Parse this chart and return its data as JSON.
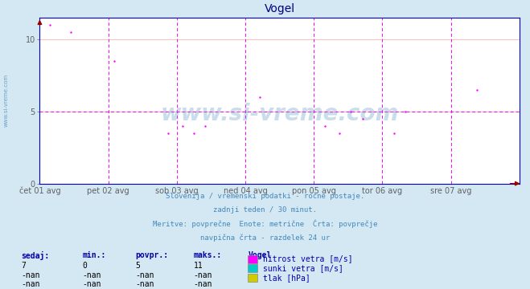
{
  "title": "Vogel",
  "bg_color": "#d4e8f4",
  "plot_bg_color": "#ffffff",
  "title_color": "#000080",
  "title_fontsize": 10,
  "ylim": [
    0,
    11.5
  ],
  "yticks": [
    0,
    5,
    10
  ],
  "tick_label_color": "#606060",
  "x_labels": [
    "čet 01 avg",
    "pet 02 avg",
    "sob 03 avg",
    "ned 04 avg",
    "pon 05 avg",
    "tor 06 avg",
    "sre 07 avg"
  ],
  "x_positions": [
    0,
    48,
    96,
    144,
    192,
    240,
    288
  ],
  "total_points": 336,
  "vline_color": "#ff00ff",
  "hgrid_color": "#ffbbbb",
  "avg_hline_y": 5,
  "avg_hline_color": "#ff00ff",
  "spine_color": "#0000cc",
  "watermark_color": "#5090c0",
  "watermark_text": "www.si-vreme.com",
  "hitrost_color": "#ff00ff",
  "sunki_color": "#00cccc",
  "tlak_color": "#cccc00",
  "hitrost_scatter_x": [
    7,
    22,
    52,
    154,
    306
  ],
  "hitrost_scatter_y": [
    11.0,
    10.5,
    8.5,
    6.0,
    6.5
  ],
  "hitrost_scatter2_x": [
    90,
    100,
    108,
    116,
    200,
    210,
    218,
    226,
    248,
    256
  ],
  "hitrost_scatter2_y": [
    3.5,
    4.0,
    3.5,
    4.0,
    4.0,
    3.5,
    5.0,
    4.5,
    3.5,
    5.0
  ],
  "info_lines": [
    "Slovenija / vremenski podatki - ročne postaje.",
    "zadnji teden / 30 minut.",
    "Meritve: povprečne  Enote: metrične  Črta: povprečje",
    "navpična črta - razdelek 24 ur"
  ],
  "info_color": "#4488bb",
  "label_color": "#0000aa",
  "val_color": "#000000",
  "table_headers": [
    "sedaj:",
    "min.:",
    "povpr.:",
    "maks.:",
    "Vogel"
  ],
  "table_row1": [
    "7",
    "0",
    "5",
    "11"
  ],
  "table_row2": [
    "-nan",
    "-nan",
    "-nan",
    "-nan"
  ],
  "table_row3": [
    "-nan",
    "-nan",
    "-nan",
    "-nan"
  ],
  "legend_labels": [
    "hitrost vetra [m/s]",
    "sunki vetra [m/s]",
    "tlak [hPa]"
  ],
  "legend_colors": [
    "#ff00ff",
    "#00cccc",
    "#cccc00"
  ]
}
